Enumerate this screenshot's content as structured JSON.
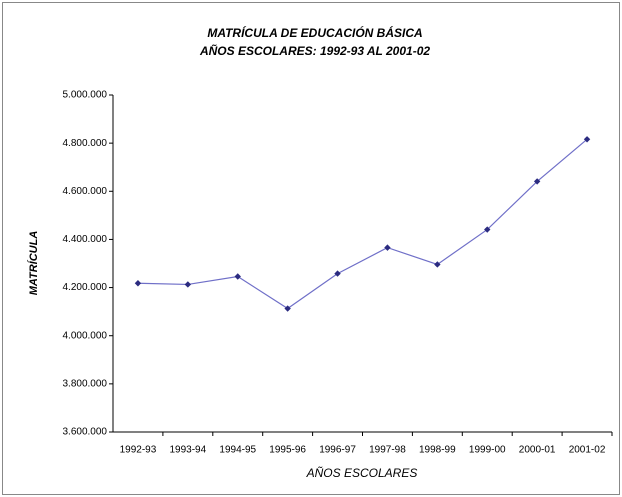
{
  "chart_data": {
    "type": "line",
    "title": "MATRÍCULA DE EDUCACIÓN BÁSICA",
    "subtitle": "AÑOS ESCOLARES:  1992-93  AL  2001-02",
    "x_label": "AÑOS  ESCOLARES",
    "y_label": "MATRÍCULA",
    "categories": [
      "1992-93",
      "1993-94",
      "1994-95",
      "1995-96",
      "1996-97",
      "1997-98",
      "1998-99",
      "1999-00",
      "2000-01",
      "2001-02"
    ],
    "series": [
      {
        "name": "MATRÍCULA",
        "color": "#6f6fc8",
        "marker_color": "#2b2b80",
        "values": [
          4218000,
          4213000,
          4246000,
          4113000,
          4258000,
          4366000,
          4296000,
          4441000,
          4641000,
          4816000
        ]
      }
    ],
    "ylim": [
      3600000,
      5000000
    ],
    "yticks": [
      {
        "value": 3600000,
        "label": "3.600.000"
      },
      {
        "value": 3800000,
        "label": "3.800.000"
      },
      {
        "value": 4000000,
        "label": "4.000.000"
      },
      {
        "value": 4200000,
        "label": "4.200.000"
      },
      {
        "value": 4400000,
        "label": "4.400.000"
      },
      {
        "value": 4600000,
        "label": "4.600.000"
      },
      {
        "value": 4800000,
        "label": "4.800.000"
      },
      {
        "value": 5000000,
        "label": "5.000.000"
      }
    ],
    "grid": false
  }
}
